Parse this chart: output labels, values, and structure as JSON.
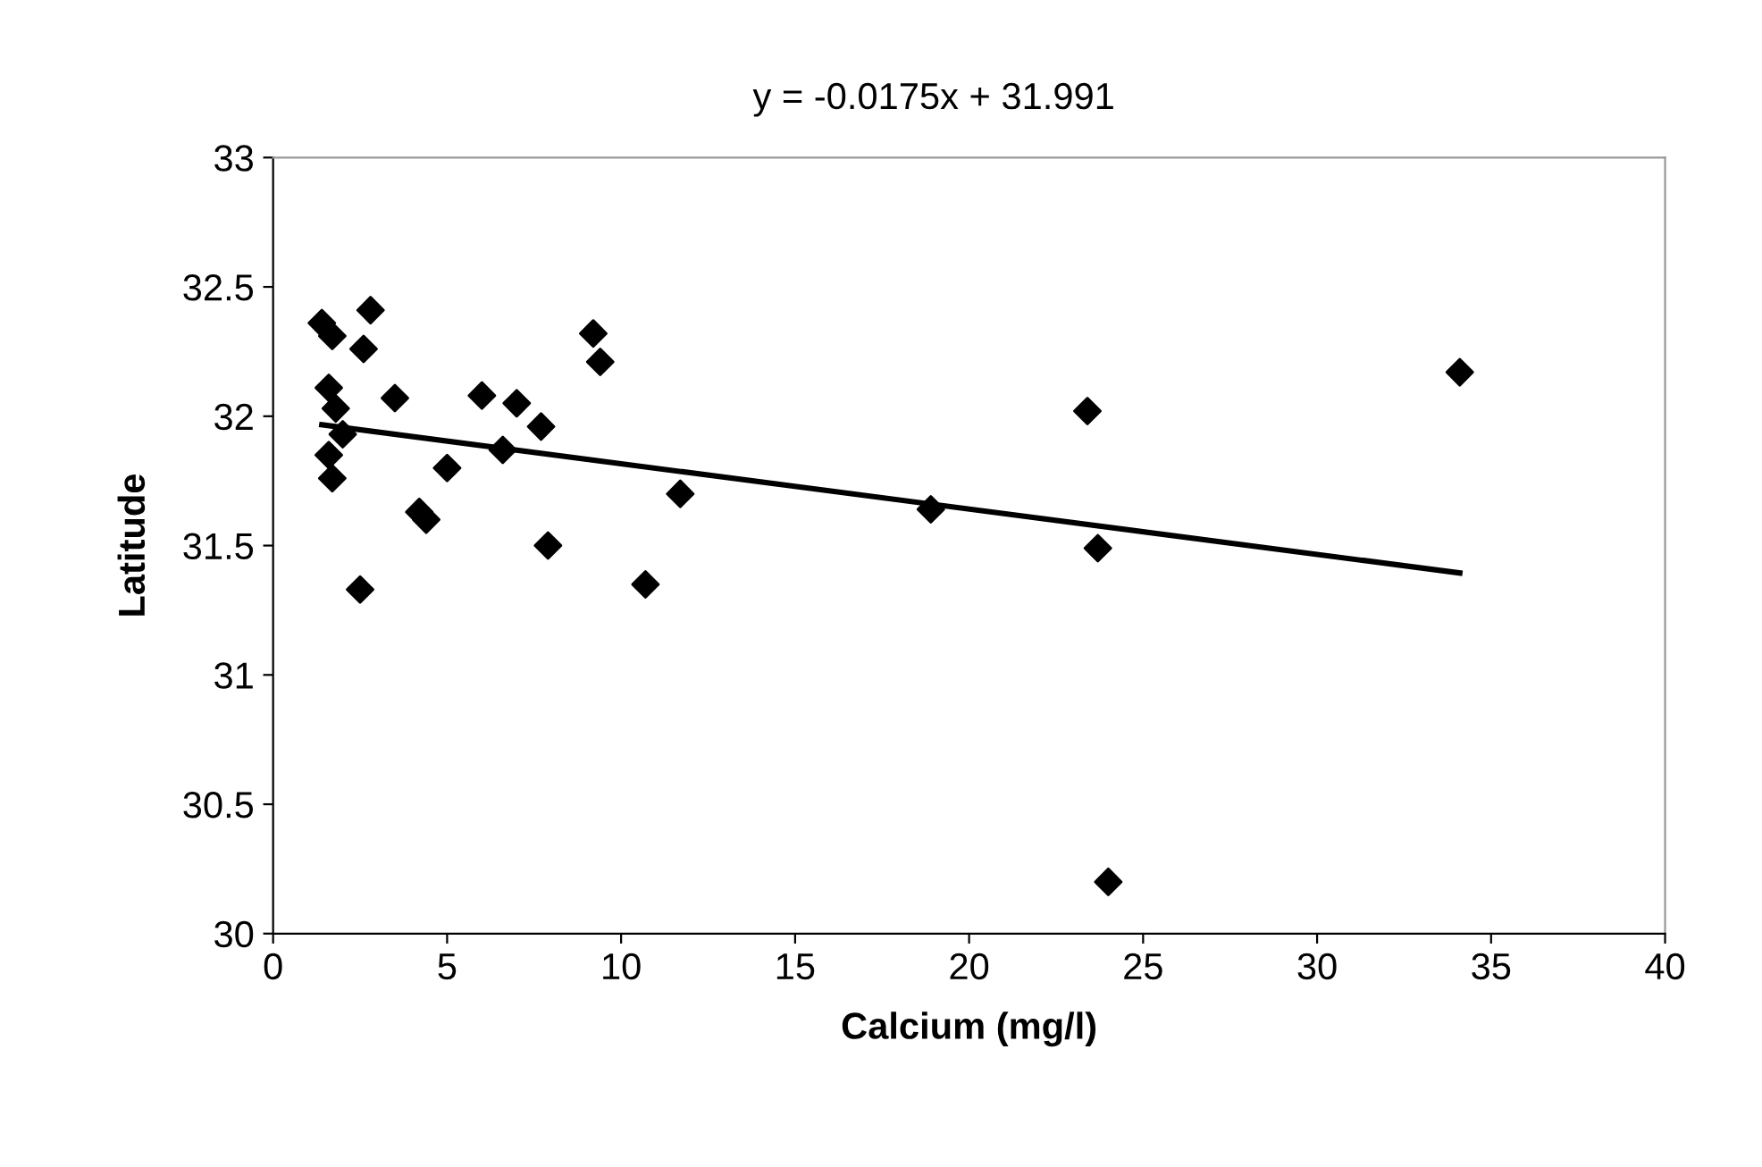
{
  "chart_data": {
    "type": "scatter",
    "xlabel": "Calcium (mg/l)",
    "ylabel": "Latitude",
    "annotations": [
      "y = -0.0175x + 31.991"
    ],
    "xlim": [
      0,
      40
    ],
    "ylim": [
      30,
      33
    ],
    "xticks": [
      0,
      5,
      10,
      15,
      20,
      25,
      30,
      35,
      40
    ],
    "yticks": [
      30,
      30.5,
      31,
      31.5,
      32,
      32.5,
      33
    ],
    "grid": false,
    "legend": false,
    "marker": "diamond",
    "series": [
      {
        "color": "#000000",
        "x": [
          1.4,
          1.7,
          2.8,
          2.6,
          1.6,
          1.8,
          2.0,
          1.6,
          1.7,
          3.5,
          2.5,
          4.2,
          4.4,
          5.0,
          6.0,
          6.6,
          7.0,
          7.7,
          7.9,
          9.2,
          9.4,
          10.7,
          11.7,
          18.9,
          23.4,
          23.7,
          24.0,
          34.1
        ],
        "values": [
          32.36,
          32.31,
          32.41,
          32.26,
          32.11,
          32.03,
          31.93,
          31.85,
          31.76,
          32.07,
          31.33,
          31.63,
          31.6,
          31.8,
          32.08,
          31.87,
          32.05,
          31.96,
          31.5,
          32.32,
          32.21,
          31.35,
          31.7,
          31.64,
          32.02,
          31.49,
          30.2,
          32.17
        ]
      },
      {
        "type": "line",
        "color": "#000000",
        "marker": "none",
        "line_style": "solid",
        "x": [
          1.4,
          34.1
        ],
        "values": [
          31.967,
          31.394
        ]
      }
    ]
  }
}
